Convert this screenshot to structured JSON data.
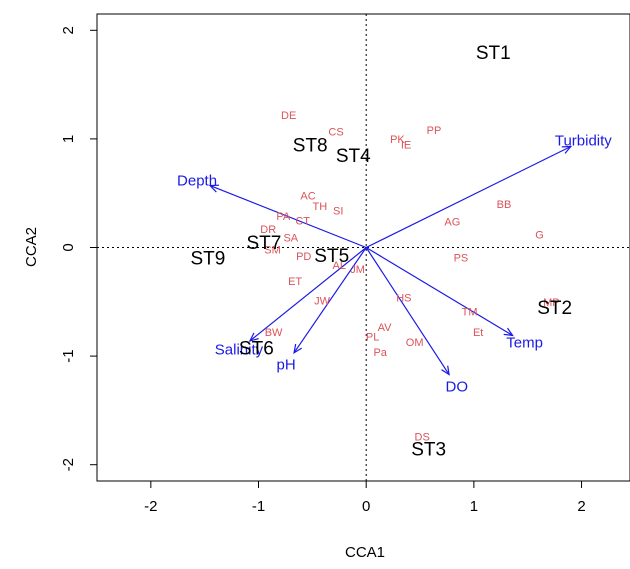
{
  "chart_data": {
    "type": "scatter",
    "subtype": "cca-triplot",
    "title": "",
    "xlabel": "CCA1",
    "ylabel": "CCA2",
    "xlim": [
      -2.5,
      2.45
    ],
    "ylim": [
      -2.15,
      2.15
    ],
    "x_ticks": [
      -2,
      -1,
      0,
      1,
      2
    ],
    "y_ticks": [
      -2,
      -1,
      0,
      1,
      2
    ],
    "reference_lines": {
      "x": 0,
      "y": 0,
      "style": "dotted"
    },
    "colors": {
      "sites": "#000000",
      "species": "#d9545a",
      "env": "#1a1ae6"
    },
    "sites": [
      {
        "label": "ST1",
        "x": 1.18,
        "y": 1.8
      },
      {
        "label": "ST2",
        "x": 1.75,
        "y": -0.55
      },
      {
        "label": "ST3",
        "x": 0.58,
        "y": -1.85
      },
      {
        "label": "ST4",
        "x": -0.12,
        "y": 0.85
      },
      {
        "label": "ST5",
        "x": -0.32,
        "y": -0.07
      },
      {
        "label": "ST6",
        "x": -1.02,
        "y": -0.92
      },
      {
        "label": "ST7",
        "x": -0.95,
        "y": 0.05
      },
      {
        "label": "ST8",
        "x": -0.52,
        "y": 0.95
      },
      {
        "label": "ST9",
        "x": -1.47,
        "y": -0.09
      }
    ],
    "species": [
      {
        "label": "PP",
        "x": 0.63,
        "y": 1.08
      },
      {
        "label": "PK",
        "x": 0.29,
        "y": 1.0
      },
      {
        "label": "IE",
        "x": 0.37,
        "y": 0.95
      },
      {
        "label": "BB",
        "x": 1.28,
        "y": 0.4
      },
      {
        "label": "AG",
        "x": 0.8,
        "y": 0.24
      },
      {
        "label": "G",
        "x": 1.61,
        "y": 0.12
      },
      {
        "label": "PS",
        "x": 0.88,
        "y": -0.09
      },
      {
        "label": "HS",
        "x": 0.35,
        "y": -0.46
      },
      {
        "label": "TM",
        "x": 0.96,
        "y": -0.59
      },
      {
        "label": "Et",
        "x": 1.04,
        "y": -0.78
      },
      {
        "label": "AV",
        "x": 0.17,
        "y": -0.73
      },
      {
        "label": "PL",
        "x": 0.06,
        "y": -0.82
      },
      {
        "label": "OM",
        "x": 0.45,
        "y": -0.87
      },
      {
        "label": "Pa",
        "x": 0.13,
        "y": -0.96
      },
      {
        "label": "AC",
        "x": -0.54,
        "y": 0.48
      },
      {
        "label": "TH",
        "x": -0.43,
        "y": 0.38
      },
      {
        "label": "SI",
        "x": -0.26,
        "y": 0.34
      },
      {
        "label": "PA",
        "x": -0.77,
        "y": 0.29
      },
      {
        "label": "CT",
        "x": -0.59,
        "y": 0.25
      },
      {
        "label": "DR",
        "x": -0.91,
        "y": 0.17
      },
      {
        "label": "SA",
        "x": -0.7,
        "y": 0.09
      },
      {
        "label": "SM",
        "x": -0.87,
        "y": -0.02
      },
      {
        "label": "PD",
        "x": -0.58,
        "y": -0.08
      },
      {
        "label": "AL",
        "x": -0.25,
        "y": -0.16
      },
      {
        "label": "JM",
        "x": -0.08,
        "y": -0.2
      },
      {
        "label": "ET",
        "x": -0.66,
        "y": -0.31
      },
      {
        "label": "JW",
        "x": -0.41,
        "y": -0.49
      },
      {
        "label": "BW",
        "x": -0.86,
        "y": -0.78
      },
      {
        "label": "DE",
        "x": -0.72,
        "y": 1.22
      },
      {
        "label": "CS",
        "x": -0.28,
        "y": 1.07
      },
      {
        "label": "DS",
        "x": 0.52,
        "y": -1.74
      },
      {
        "label": "MP",
        "x": 1.72,
        "y": -0.5
      }
    ],
    "env_vectors": [
      {
        "label": "Turbidity",
        "x": 1.9,
        "y": 0.93
      },
      {
        "label": "Depth",
        "x": -1.45,
        "y": 0.57
      },
      {
        "label": "Temp",
        "x": 1.36,
        "y": -0.81
      },
      {
        "label": "DO",
        "x": 0.77,
        "y": -1.17
      },
      {
        "label": "pH",
        "x": -0.67,
        "y": -0.97
      },
      {
        "label": "Salinity",
        "x": -1.08,
        "y": -0.86
      }
    ]
  }
}
